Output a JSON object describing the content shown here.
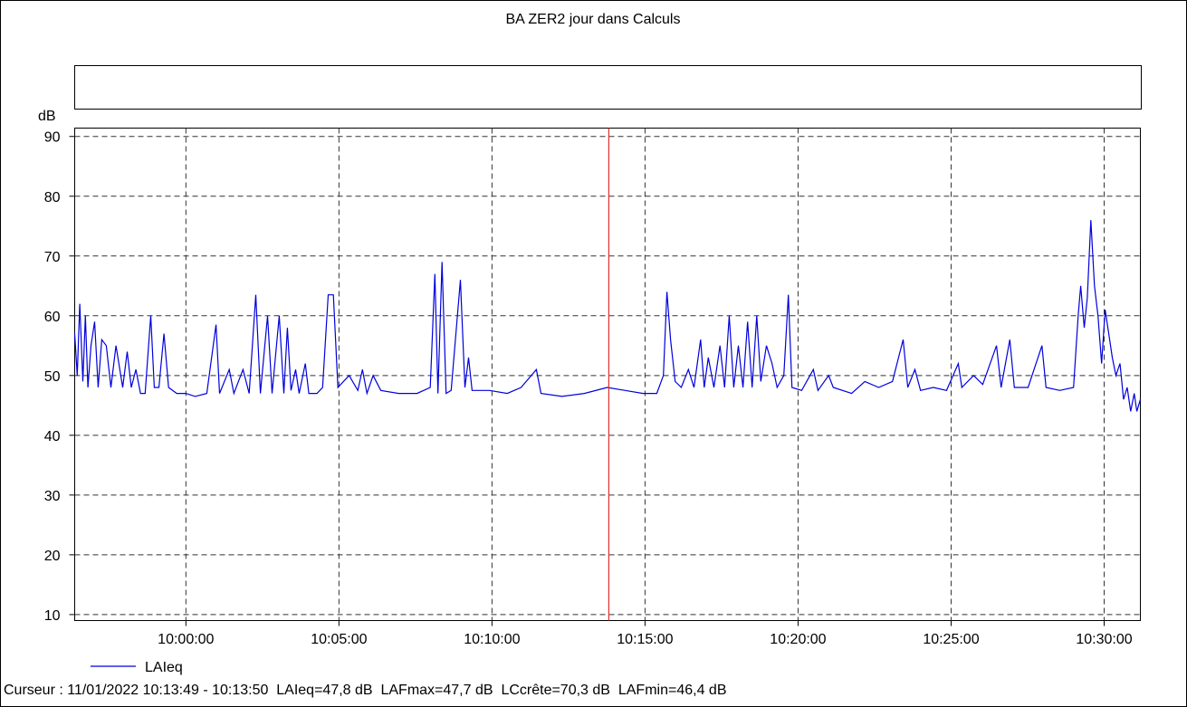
{
  "chart_data": {
    "type": "line",
    "title": "BA ZER2 jour dans Calculs",
    "y_label": "dB",
    "xlim": [
      "09:56:22",
      "10:31:11"
    ],
    "xticks": [
      "10:00:00",
      "10:05:00",
      "10:10:00",
      "10:15:00",
      "10:20:00",
      "10:25:00",
      "10:30:00"
    ],
    "ylim": [
      9,
      91.4
    ],
    "yticks": [
      10,
      20,
      30,
      40,
      50,
      60,
      70,
      80,
      90
    ],
    "grid": true,
    "x": [
      "09:56:22",
      "09:56:27",
      "09:56:32",
      "09:56:38",
      "09:56:43",
      "09:56:48",
      "09:56:54",
      "09:57:01",
      "09:57:08",
      "09:57:15",
      "09:57:24",
      "09:57:33",
      "09:57:43",
      "09:57:56",
      "09:58:05",
      "09:58:13",
      "09:58:22",
      "09:58:31",
      "09:58:40",
      "09:58:51",
      "09:58:58",
      "09:59:07",
      "09:59:17",
      "09:59:26",
      "09:59:42",
      "10:00:00",
      "10:00:18",
      "10:00:41",
      "10:00:59",
      "10:01:06",
      "10:01:25",
      "10:01:34",
      "10:01:52",
      "10:02:04",
      "10:02:17",
      "10:02:26",
      "10:02:40",
      "10:02:49",
      "10:03:03",
      "10:03:12",
      "10:03:19",
      "10:03:26",
      "10:03:35",
      "10:03:42",
      "10:03:54",
      "10:04:01",
      "10:04:17",
      "10:04:28",
      "10:04:39",
      "10:04:49",
      "10:04:58",
      "10:05:20",
      "10:05:37",
      "10:05:46",
      "10:05:55",
      "10:06:07",
      "10:06:22",
      "10:06:57",
      "10:07:33",
      "10:07:59",
      "10:08:08",
      "10:08:14",
      "10:08:22",
      "10:08:30",
      "10:08:40",
      "10:08:58",
      "10:09:07",
      "10:09:14",
      "10:09:21",
      "10:09:55",
      "10:10:30",
      "10:10:57",
      "10:11:27",
      "10:11:36",
      "10:12:17",
      "10:13:01",
      "10:13:46",
      "10:14:21",
      "10:14:56",
      "10:15:23",
      "10:15:36",
      "10:15:43",
      "10:15:50",
      "10:15:59",
      "10:16:11",
      "10:16:25",
      "10:16:36",
      "10:16:49",
      "10:16:56",
      "10:17:04",
      "10:17:15",
      "10:17:27",
      "10:17:36",
      "10:17:45",
      "10:17:54",
      "10:18:03",
      "10:18:12",
      "10:18:21",
      "10:18:30",
      "10:18:39",
      "10:18:47",
      "10:18:58",
      "10:19:09",
      "10:19:19",
      "10:19:32",
      "10:19:41",
      "10:19:48",
      "10:20:07",
      "10:20:30",
      "10:20:39",
      "10:21:00",
      "10:21:09",
      "10:21:45",
      "10:22:11",
      "10:22:38",
      "10:23:05",
      "10:23:17",
      "10:23:26",
      "10:23:35",
      "10:23:49",
      "10:24:00",
      "10:24:25",
      "10:24:51",
      "10:25:14",
      "10:25:21",
      "10:25:44",
      "10:26:02",
      "10:26:29",
      "10:26:38",
      "10:26:55",
      "10:27:04",
      "10:27:31",
      "10:27:58",
      "10:28:06",
      "10:28:33",
      "10:29:00",
      "10:29:09",
      "10:29:14",
      "10:29:21",
      "10:29:27",
      "10:29:34",
      "10:29:41",
      "10:29:48",
      "10:29:55",
      "10:30:02",
      "10:30:09",
      "10:30:16",
      "10:30:23",
      "10:30:31",
      "10:30:38",
      "10:30:45",
      "10:30:52",
      "10:30:59",
      "10:31:04",
      "10:31:11"
    ],
    "series": [
      {
        "name": "LAIeq",
        "color": "#0000dd",
        "values": [
          57,
          50,
          62,
          49,
          60,
          48,
          55,
          59,
          48,
          56,
          55,
          48,
          55,
          48,
          54,
          48,
          51,
          47,
          47,
          60,
          48,
          48,
          57,
          48,
          47,
          47,
          46.5,
          47,
          58.5,
          47,
          51,
          47,
          51,
          47,
          63.5,
          47,
          60,
          47,
          60,
          47,
          58,
          47.5,
          51,
          47,
          52,
          47,
          47,
          48,
          63.5,
          63.5,
          48,
          50,
          47.5,
          51,
          47,
          50,
          47.5,
          47,
          47,
          48,
          67,
          47,
          69,
          47,
          47.5,
          66,
          48,
          53,
          47.5,
          47.5,
          47,
          48,
          51,
          47,
          46.5,
          47,
          48,
          47.5,
          47,
          47,
          50,
          64,
          56,
          49,
          48,
          51,
          48,
          56,
          48,
          53,
          48,
          55,
          48,
          60,
          48,
          55,
          48,
          59,
          48,
          60,
          49,
          55,
          52,
          48,
          50,
          63.5,
          48,
          47.5,
          51,
          47.5,
          50,
          48,
          47,
          49,
          48,
          49,
          53,
          56,
          48,
          51,
          47.5,
          48,
          47.5,
          52,
          48,
          50,
          48.5,
          55,
          48,
          56,
          48,
          48,
          55,
          48,
          47.5,
          48,
          60,
          65,
          58,
          63,
          76,
          65,
          60,
          52,
          61,
          57,
          53,
          50,
          52,
          46,
          48,
          44,
          47,
          44,
          46
        ]
      }
    ],
    "cursor_color": "#e03030"
  },
  "footer": {
    "label": "Curseur :",
    "date": "11/01/2022",
    "start": "10:13:49",
    "end": "10:13:50",
    "readings": [
      "LAIeq=47,8 dB",
      "LAFmax=47,7 dB",
      "LCcrête=70,3 dB",
      "LAFmin=46,4 dB"
    ]
  }
}
